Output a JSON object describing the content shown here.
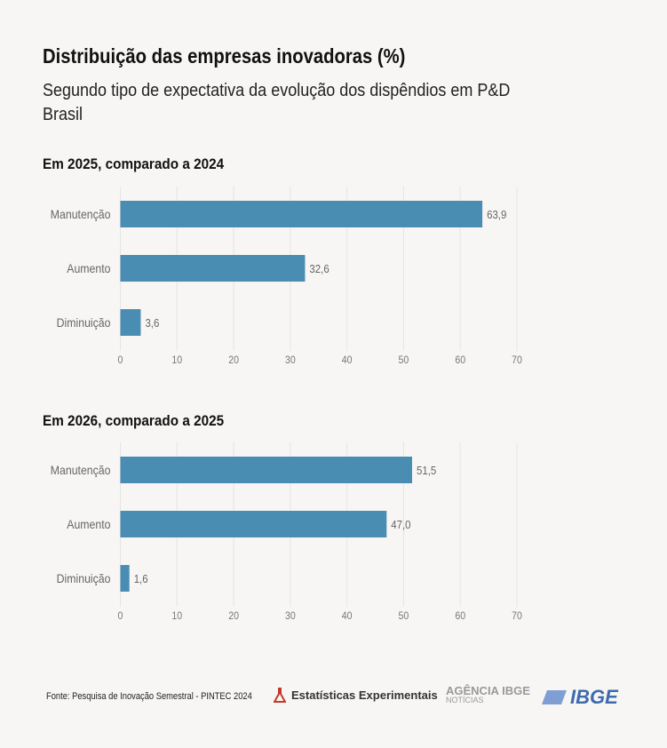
{
  "title": "Distribuição das empresas inovadoras (%)",
  "subtitle_line1": "Segundo tipo de expectativa da evolução dos dispêndios em P&D",
  "subtitle_line2": "Brasil",
  "chart_data": [
    {
      "type": "bar",
      "orientation": "horizontal",
      "title": "Em 2025, comparado a 2024",
      "categories": [
        "Manutenção",
        "Aumento",
        "Diminuição"
      ],
      "values": [
        63.9,
        32.6,
        3.6
      ],
      "value_labels": [
        "63,9",
        "32,6",
        "3,6"
      ],
      "xlim": [
        0,
        70
      ],
      "xticks": [
        0,
        10,
        20,
        30,
        40,
        50,
        60,
        70
      ],
      "grid": true,
      "color": "#4a8db3"
    },
    {
      "type": "bar",
      "orientation": "horizontal",
      "title": "Em 2026, comparado a 2025",
      "categories": [
        "Manutenção",
        "Aumento",
        "Diminuição"
      ],
      "values": [
        51.5,
        47.0,
        1.6
      ],
      "value_labels": [
        "51,5",
        "47,0",
        "1,6"
      ],
      "xlim": [
        0,
        70
      ],
      "xticks": [
        0,
        10,
        20,
        30,
        40,
        50,
        60,
        70
      ],
      "grid": true,
      "color": "#4a8db3"
    }
  ],
  "footer": {
    "source": "Fonte: Pesquisa de Inovação Semestral - PINTEC 2024",
    "logo_experimental": "Estatísticas Experimentais",
    "logo_agencia": "AGÊNCIA IBGE",
    "logo_agencia_sub": "NOTÍCIAS",
    "logo_ibge": "IBGE"
  }
}
